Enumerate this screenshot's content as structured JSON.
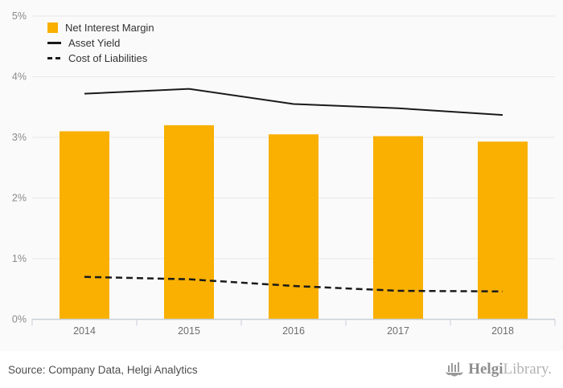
{
  "colors": {
    "bar": "#F9B000",
    "line": "#1A1A1A",
    "grid": "#E8E8E8",
    "axis": "#C8CFDA",
    "y_label": "#8A8A8A",
    "x_label": "#6E6E6E",
    "legend_text": "#333333",
    "chart_bg": "#FAFAFA",
    "footer_bg": "#FFFFFF",
    "logo_gray": "#9A9A9A"
  },
  "legend": {
    "items": [
      {
        "label": "Net Interest Margin",
        "marker": "bar-swatch"
      },
      {
        "label": "Asset Yield",
        "marker": "solid-line"
      },
      {
        "label": "Cost of Liabilities",
        "marker": "dashed-line"
      }
    ]
  },
  "chart_data": {
    "type": "bar",
    "categories": [
      "2014",
      "2015",
      "2016",
      "2017",
      "2018"
    ],
    "series": [
      {
        "name": "Net Interest Margin",
        "type": "bar",
        "values": [
          3.1,
          3.2,
          3.05,
          3.02,
          2.93
        ]
      },
      {
        "name": "Asset Yield",
        "type": "line",
        "style": "solid",
        "values": [
          3.72,
          3.8,
          3.55,
          3.48,
          3.37
        ]
      },
      {
        "name": "Cost of Liabilities",
        "type": "line",
        "style": "dashed",
        "values": [
          0.7,
          0.66,
          0.55,
          0.47,
          0.46
        ]
      }
    ],
    "title": "",
    "xlabel": "",
    "ylabel": "",
    "ylim": [
      0,
      5
    ],
    "yticks": [
      "0%",
      "1%",
      "2%",
      "3%",
      "4%",
      "5%"
    ],
    "grid": true,
    "legend_position": "top-left"
  },
  "footer": {
    "source": "Source: Company Data, Helgi Analytics",
    "logo_primary": "Helgi",
    "logo_secondary": "Library."
  }
}
